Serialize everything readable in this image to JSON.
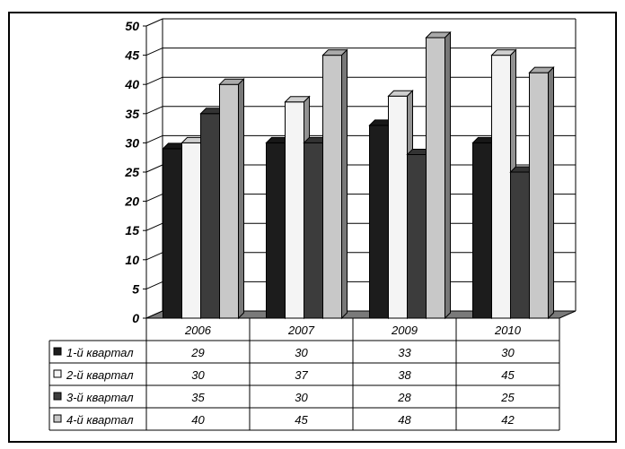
{
  "chart_data": {
    "type": "bar",
    "categories": [
      "2006",
      "2007",
      "2009",
      "2010"
    ],
    "series": [
      {
        "name": "1-й квартал",
        "values": [
          29,
          30,
          33,
          30
        ],
        "color": "#1c1c1c"
      },
      {
        "name": "2-й квартал",
        "values": [
          30,
          37,
          38,
          45
        ],
        "color": "#f4f4f4"
      },
      {
        "name": "3-й квартал",
        "values": [
          35,
          30,
          28,
          25
        ],
        "color": "#3c3c3c"
      },
      {
        "name": "4-й квартал",
        "values": [
          40,
          45,
          48,
          42
        ],
        "color": "#c8c8c8"
      }
    ],
    "yticks": [
      "0",
      "5",
      "10",
      "15",
      "20",
      "25",
      "30",
      "35",
      "40",
      "45",
      "50"
    ],
    "ylim": [
      0,
      50
    ],
    "grid": true,
    "legend": "data-table-left",
    "data_table": true
  }
}
